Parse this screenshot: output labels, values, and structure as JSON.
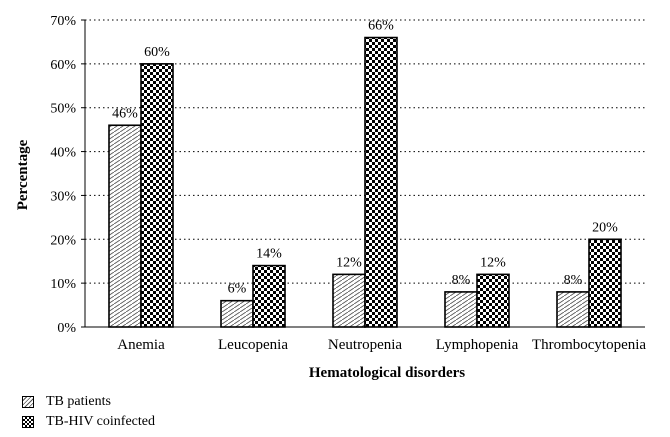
{
  "chart_data": {
    "type": "bar",
    "xlabel": "Hematological disorders",
    "ylabel": "Percentage",
    "ylim": [
      0,
      70
    ],
    "yticks": [
      "0%",
      "10%",
      "20%",
      "30%",
      "40%",
      "50%",
      "60%",
      "70%"
    ],
    "grid": "horizontal dotted",
    "legend_position": "bottom-left",
    "categories": [
      "Anemia",
      "Leucopenia",
      "Neutropenia",
      "Lymphopenia",
      "Thrombocytopenia"
    ],
    "series": [
      {
        "name": "TB patients",
        "values": [
          46,
          6,
          12,
          8,
          8
        ],
        "labels": [
          "46%",
          "6%",
          "12%",
          "8%",
          "8%"
        ],
        "pattern": "diagonal-hatch"
      },
      {
        "name": "TB-HIV coinfected",
        "values": [
          60,
          14,
          66,
          12,
          20
        ],
        "labels": [
          "60%",
          "14%",
          "66%",
          "12%",
          "20%"
        ],
        "pattern": "checkerboard"
      }
    ]
  }
}
